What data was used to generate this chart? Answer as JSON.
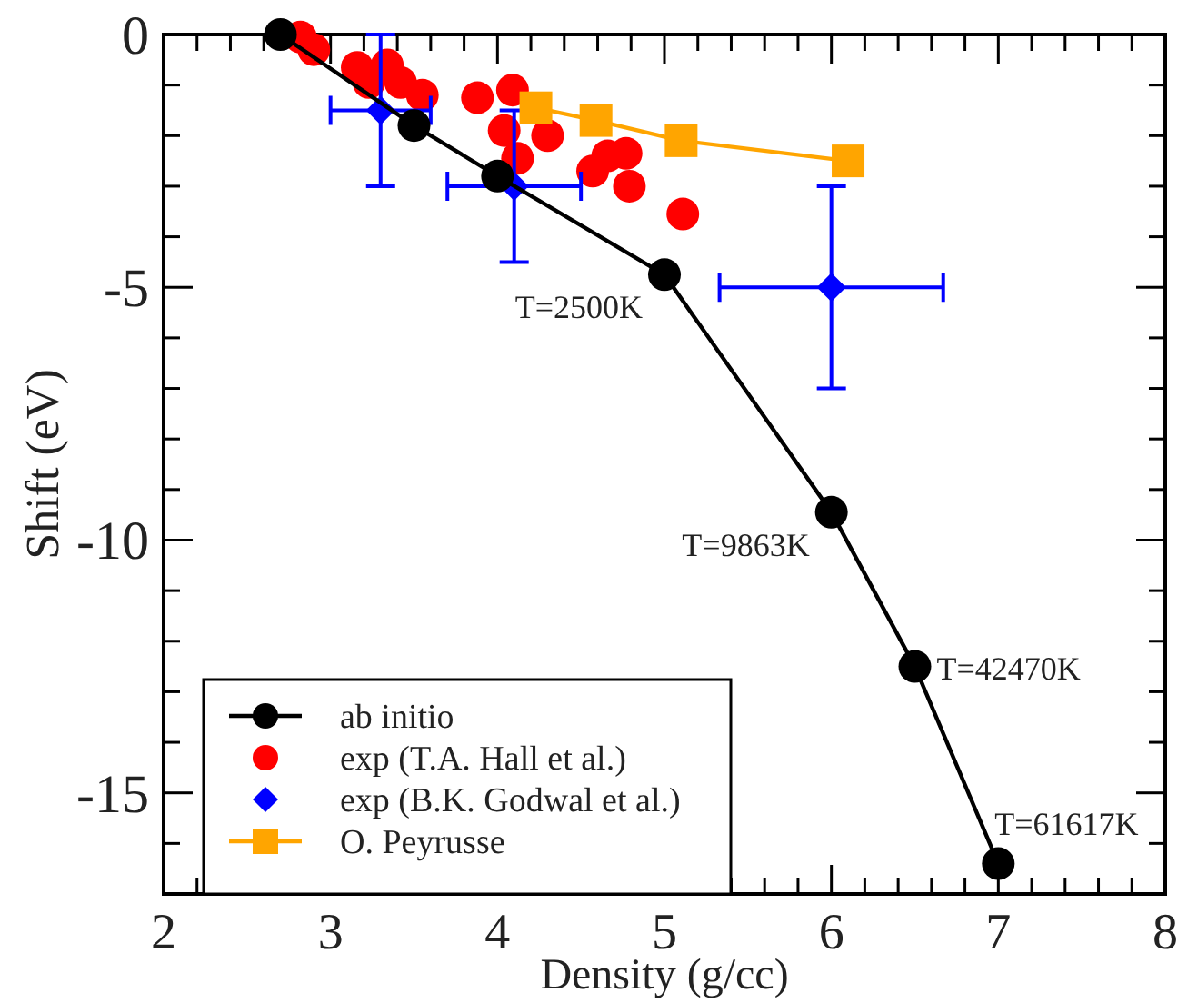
{
  "chart_data": {
    "type": "line",
    "xlabel": "Density (g/cc)",
    "ylabel": "Shift (eV)",
    "xlim": [
      2,
      8
    ],
    "ylim": [
      -17,
      0
    ],
    "xticks": [
      2,
      {
        "value": 2.2,
        "label": null
      },
      {
        "value": 2.4,
        "label": null
      },
      {
        "value": 2.6,
        "label": null
      },
      {
        "value": 2.8,
        "label": null
      },
      3,
      {
        "value": 3.2,
        "label": null
      },
      {
        "value": 3.4,
        "label": null
      },
      {
        "value": 3.6,
        "label": null
      },
      {
        "value": 3.8,
        "label": null
      },
      4,
      {
        "value": 4.2,
        "label": null
      },
      {
        "value": 4.4,
        "label": null
      },
      {
        "value": 4.6,
        "label": null
      },
      {
        "value": 4.8,
        "label": null
      },
      5,
      {
        "value": 5.2,
        "label": null
      },
      {
        "value": 5.4,
        "label": null
      },
      {
        "value": 5.6,
        "label": null
      },
      {
        "value": 5.8,
        "label": null
      },
      6,
      {
        "value": 6.2,
        "label": null
      },
      {
        "value": 6.4,
        "label": null
      },
      {
        "value": 6.6,
        "label": null
      },
      {
        "value": 6.8,
        "label": null
      },
      7,
      {
        "value": 7.2,
        "label": null
      },
      {
        "value": 7.4,
        "label": null
      },
      {
        "value": 7.6,
        "label": null
      },
      {
        "value": 7.8,
        "label": null
      },
      8
    ],
    "yticks": [
      {
        "value": -16,
        "label": null
      },
      -15,
      {
        "value": -14,
        "label": null
      },
      {
        "value": -13,
        "label": null
      },
      {
        "value": -12,
        "label": null
      },
      {
        "value": -11,
        "label": null
      },
      -10,
      {
        "value": -9,
        "label": null
      },
      {
        "value": -8,
        "label": null
      },
      {
        "value": -7,
        "label": null
      },
      {
        "value": -6,
        "label": null
      },
      -5,
      {
        "value": -4,
        "label": null
      },
      {
        "value": -3,
        "label": null
      },
      {
        "value": -2,
        "label": null
      },
      {
        "value": -1,
        "label": null
      },
      0
    ],
    "grid": false,
    "legend": "bottom left",
    "series": [
      {
        "name": "ab initio",
        "color": "#000000",
        "marker": "circle",
        "x": [
          2.7,
          3.5,
          4.0,
          5.0,
          6.0,
          6.5,
          7.0
        ],
        "values": [
          0,
          -1.8,
          -2.8,
          -4.75,
          -9.45,
          -12.5,
          -16.4
        ]
      },
      {
        "name": "exp (T.A. Hall et al.)",
        "type": "scatter",
        "color": "#ff0000",
        "marker": "circle",
        "x": [
          2.82,
          2.9,
          3.16,
          3.23,
          3.34,
          3.42,
          3.55,
          3.88,
          4.09,
          4.04,
          4.12,
          4.3,
          4.57,
          4.66,
          4.77,
          4.79,
          5.11
        ],
        "values": [
          -0.05,
          -0.3,
          -0.65,
          -0.95,
          -0.6,
          -0.95,
          -1.2,
          -1.25,
          -1.1,
          -1.9,
          -2.45,
          -2.0,
          -2.7,
          -2.4,
          -2.35,
          -3.0,
          -3.55
        ]
      },
      {
        "name": "exp (B.K. Godwal et al.)",
        "type": "scatter",
        "color": "#0000ff",
        "marker": "diamond",
        "x": [
          3.3,
          4.1,
          6.0
        ],
        "values": [
          -1.5,
          -3.0,
          -5.0
        ],
        "errors": [
          1.5,
          1.5,
          2.0
        ],
        "xerrors": [
          0.3,
          0.4,
          0.67
        ]
      },
      {
        "name": "O. Peyrusse",
        "color": "#ffa500",
        "marker": "square",
        "x": [
          4.23,
          4.59,
          5.1,
          6.1
        ],
        "values": [
          -1.45,
          -1.7,
          -2.1,
          -2.5
        ]
      }
    ],
    "annotations": [
      {
        "text": "T=2500K",
        "x": 5.0,
        "y": -4.75
      },
      {
        "text": "T=9863K",
        "x": 6.0,
        "y": -9.45
      },
      {
        "text": "T=42470K",
        "x": 6.5,
        "y": -12.5
      },
      {
        "text": "T=61617K",
        "x": 7.0,
        "y": -16.4
      }
    ]
  }
}
